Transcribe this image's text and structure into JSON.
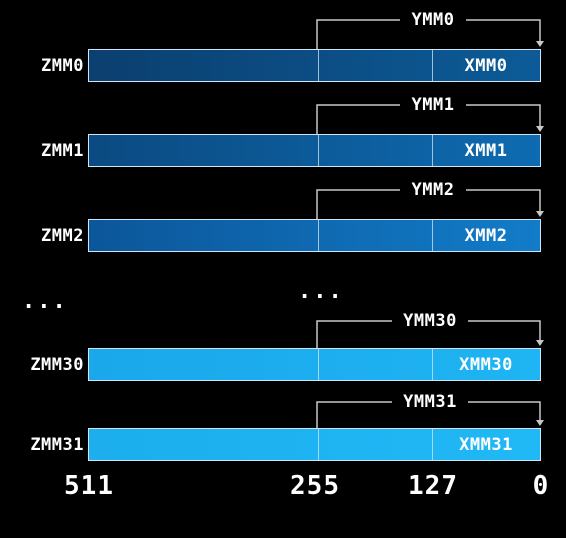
{
  "registers": [
    {
      "zmm": "ZMM0",
      "ymm": "YMM0",
      "xmm": "XMM0",
      "color_left": "#0b3f6f",
      "color_right": "#0c5b98"
    },
    {
      "zmm": "ZMM1",
      "ymm": "YMM1",
      "xmm": "XMM1",
      "color_left": "#0b4a81",
      "color_right": "#0e6bb1"
    },
    {
      "zmm": "ZMM2",
      "ymm": "YMM2",
      "xmm": "XMM2",
      "color_left": "#0c569a",
      "color_right": "#127cc8"
    },
    {
      "zmm": "ZMM30",
      "ymm": "YMM30",
      "xmm": "XMM30",
      "color_left": "#1aa8ea",
      "color_right": "#1fb4f3"
    },
    {
      "zmm": "ZMM31",
      "ymm": "YMM31",
      "xmm": "XMM31",
      "color_left": "#1caeed",
      "color_right": "#21b8f6"
    }
  ],
  "ellipsis": "...",
  "bit_positions": [
    "511",
    "255",
    "127",
    "0"
  ],
  "colors": {
    "background": "#000000",
    "bracket": "#c8c8c8",
    "text": "#ffffff"
  }
}
